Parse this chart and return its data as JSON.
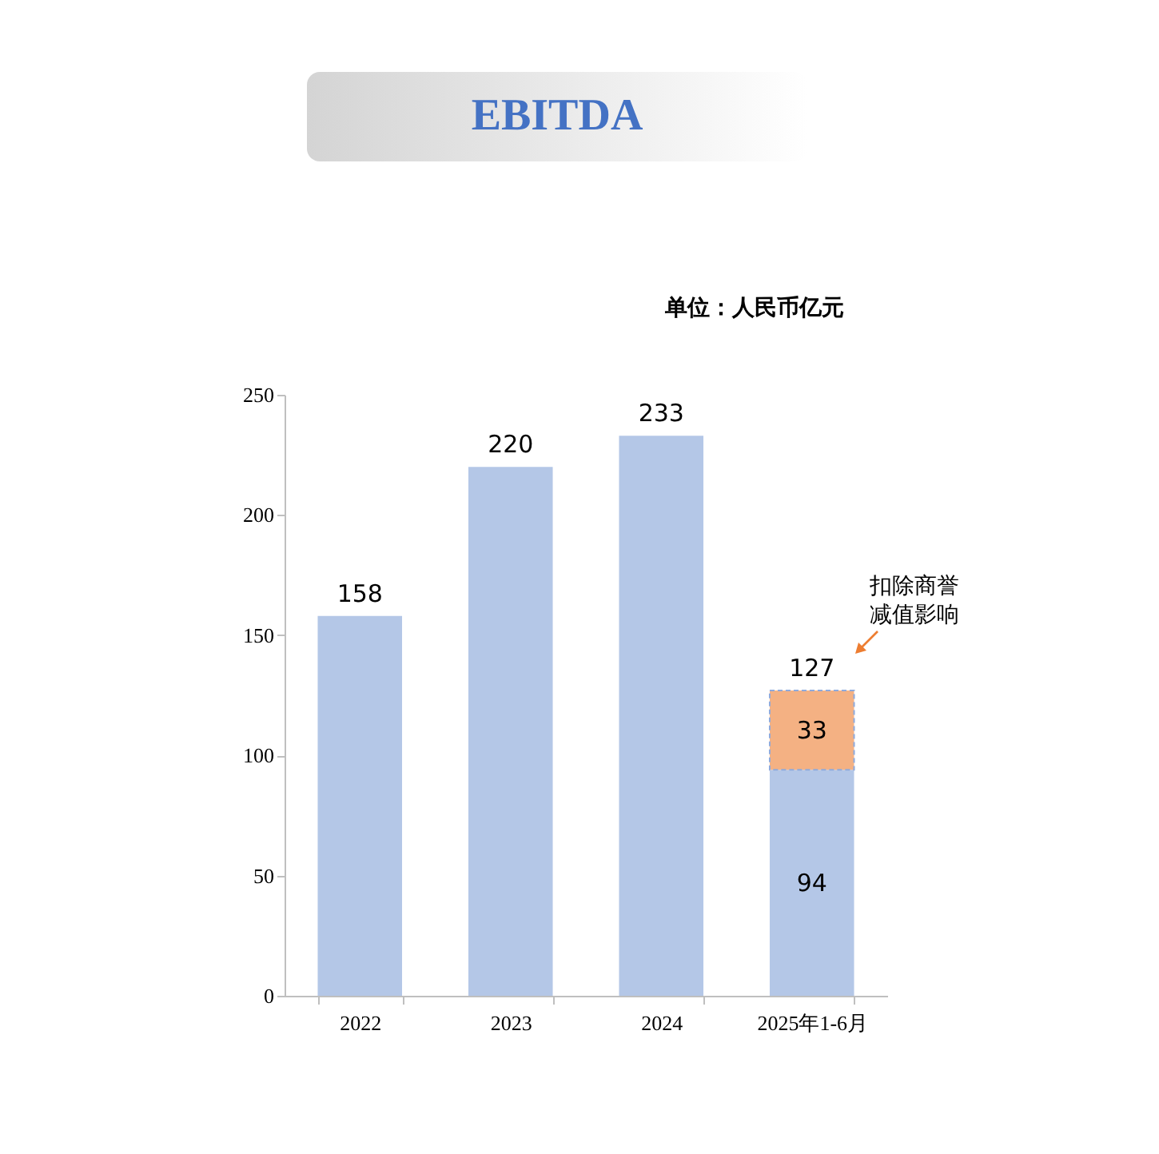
{
  "chart_data": {
    "type": "bar",
    "title": "EBITDA",
    "categories": [
      "2022",
      "2023",
      "2024",
      "2025年1-6月"
    ],
    "stacked": true,
    "series": [
      {
        "color": "#b4c7e7",
        "values": [
          158,
          220,
          233,
          94
        ],
        "value_labels": [
          null,
          null,
          null,
          "94"
        ]
      },
      {
        "color": "#f4b183",
        "values": [
          null,
          null,
          null,
          33
        ],
        "value_labels": [
          null,
          null,
          null,
          "33"
        ]
      }
    ],
    "totals": [
      "158",
      "220",
      "233",
      "127"
    ],
    "ylim": [
      0,
      250
    ],
    "yticks": [
      0,
      50,
      100,
      150,
      200,
      250
    ],
    "annotations": [
      "单位：人民币亿元",
      "扣除商誉减值影响"
    ]
  }
}
